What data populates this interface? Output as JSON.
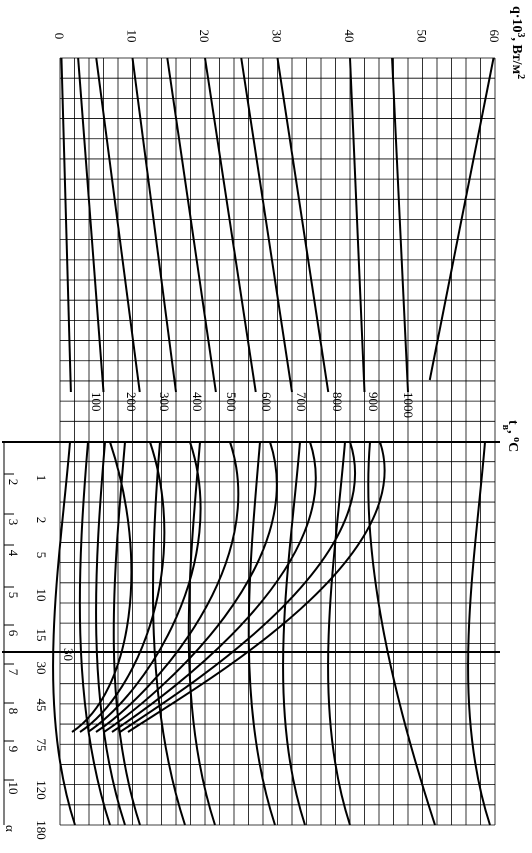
{
  "chart_data": {
    "type": "line",
    "title": "",
    "ylabel_html": [
      "q·10",
      "3",
      ", Вт/м",
      "2"
    ],
    "ylabel": "q·10³, Вт/м²",
    "top_axis_label": [
      "t",
      "в",
      ", ",
      "o",
      "C"
    ],
    "top_axis_label_text": "tв, oC",
    "q_ticks": [
      "0",
      "10",
      "20",
      "30",
      "40",
      "50",
      "60"
    ],
    "q_range": [
      0,
      60
    ],
    "temperature_labels": [
      "100",
      "200",
      "300",
      "400",
      "500",
      "600",
      "700",
      "800",
      "900",
      "1000"
    ],
    "tau_ticks": [
      "1",
      "2",
      "5",
      "10",
      "15",
      "30",
      "45",
      "75",
      "120",
      "180"
    ],
    "alpha_ticks": [
      "2",
      "3",
      "4",
      "5",
      "6",
      "7",
      "8",
      "9",
      "10"
    ],
    "alpha_label": "α",
    "mark_30": "30",
    "series": [
      {
        "t": "100",
        "q_left": 0.2,
        "q_at_divider": 1.5
      },
      {
        "t": "200",
        "q_left": 2.5,
        "q_at_divider": 6.0
      },
      {
        "t": "300",
        "q_left": 5.0,
        "q_at_divider": 11.0
      },
      {
        "t": "400",
        "q_left": 10.0,
        "q_at_divider": 16.0
      },
      {
        "t": "500",
        "q_left": 14.8,
        "q_at_divider": 21.5
      },
      {
        "t": "600",
        "q_left": 20.0,
        "q_at_divider": 27.0
      },
      {
        "t": "700",
        "q_left": 25.0,
        "q_at_divider": 32.0
      },
      {
        "t": "800",
        "q_left": 30.0,
        "q_at_divider": 37.0
      },
      {
        "t": "900",
        "q_left": 40.0,
        "q_at_divider": 42.0
      },
      {
        "t": "1000",
        "q_left": 45.8,
        "q_at_divider": 48.0
      },
      {
        "t": "top",
        "q_left": 59.8,
        "q_at_divider": 51.0
      }
    ],
    "grid": true
  }
}
